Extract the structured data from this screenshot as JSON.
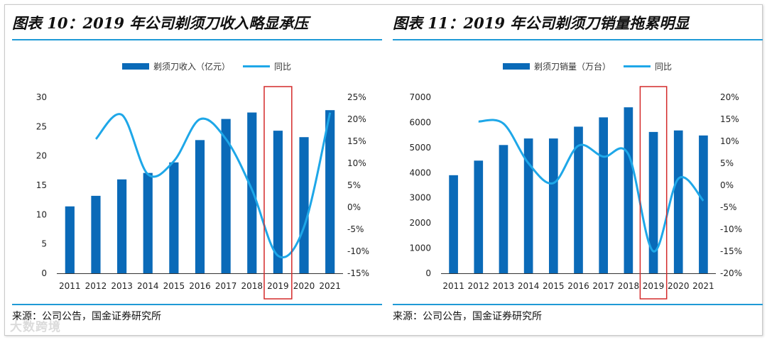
{
  "charts": [
    {
      "panel_title": "图表 10：2019 年公司剃须刀收入略显承压",
      "source": "来源：公司公告，国金证券研究所",
      "chart_data": {
        "type": "bar",
        "title": "图表 10：2019 年公司剃须刀收入略显承压",
        "categories": [
          "2011",
          "2012",
          "2013",
          "2014",
          "2015",
          "2016",
          "2017",
          "2018",
          "2019",
          "2020",
          "2021"
        ],
        "series": [
          {
            "name": "剃须刀收入（亿元）",
            "type": "bar",
            "axis": "left",
            "values": [
              11.4,
              13.2,
              16.0,
              17.1,
              18.9,
              22.7,
              26.3,
              27.4,
              24.3,
              23.2,
              27.8
            ]
          },
          {
            "name": "同比",
            "type": "line",
            "axis": "right",
            "values": [
              null,
              15.5,
              21.0,
              7.5,
              10.5,
              20.0,
              15.5,
              4.0,
              -11.0,
              -4.5,
              21.5
            ]
          }
        ],
        "left_axis": {
          "min": 0,
          "max": 30,
          "ticks": [
            0,
            5,
            10,
            15,
            20,
            25,
            30
          ],
          "labels": [
            "0",
            "5",
            "10",
            "15",
            "20",
            "25",
            "30"
          ]
        },
        "right_axis": {
          "min": -15,
          "max": 25,
          "ticks": [
            -15,
            -10,
            -5,
            0,
            5,
            10,
            15,
            20,
            25
          ],
          "labels": [
            "-15%",
            "-10%",
            "-5%",
            "0%",
            "5%",
            "10%",
            "15%",
            "20%",
            "25%"
          ]
        },
        "highlight_category": "2019",
        "legend_position": "top-center",
        "grid": false
      }
    },
    {
      "panel_title": "图表 11：2019 年公司剃须刀销量拖累明显",
      "source": "来源：公司公告，国金证券研究所",
      "chart_data": {
        "type": "bar",
        "title": "图表 11：2019 年公司剃须刀销量拖累明显",
        "categories": [
          "2011",
          "2012",
          "2013",
          "2014",
          "2015",
          "2016",
          "2017",
          "2018",
          "2019",
          "2020",
          "2021"
        ],
        "series": [
          {
            "name": "剃须刀销量（万台）",
            "type": "bar",
            "axis": "left",
            "values": [
              3900,
              4480,
              5100,
              5360,
              5360,
              5830,
              6200,
              6600,
              5620,
              5680,
              5480
            ]
          },
          {
            "name": "同比",
            "type": "line",
            "axis": "right",
            "values": [
              null,
              14.5,
              14.0,
              5.0,
              0.5,
              9.0,
              6.5,
              7.0,
              -15.0,
              1.5,
              -3.5
            ]
          }
        ],
        "left_axis": {
          "min": 0,
          "max": 7000,
          "ticks": [
            0,
            1000,
            2000,
            3000,
            4000,
            5000,
            6000,
            7000
          ],
          "labels": [
            "0",
            "1000",
            "2000",
            "3000",
            "4000",
            "5000",
            "6000",
            "7000"
          ]
        },
        "right_axis": {
          "min": -20,
          "max": 20,
          "ticks": [
            -20,
            -15,
            -10,
            -5,
            0,
            5,
            10,
            15,
            20
          ],
          "labels": [
            "-20%",
            "-15%",
            "-10%",
            "-5%",
            "0%",
            "5%",
            "10%",
            "15%",
            "20%"
          ]
        },
        "highlight_category": "2019",
        "legend_position": "top-center",
        "grid": false
      }
    }
  ],
  "colors": {
    "bar": "#0a6ab8",
    "line": "#1ea7e8",
    "highlight": "#d42a2a",
    "rule": "#1f9ad6",
    "axis": "#333333"
  },
  "watermark": "大数跨境"
}
